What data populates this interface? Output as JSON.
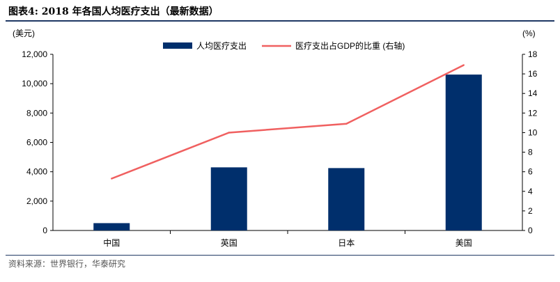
{
  "header": {
    "title": "图表4:   2018 年各国人均医疗支出（最新数据）"
  },
  "footer": {
    "source": "资料来源：世界银行，华泰研究"
  },
  "chart_data": {
    "type": "bar",
    "categories": [
      "中国",
      "英国",
      "日本",
      "美国"
    ],
    "series": [
      {
        "name": "人均医疗支出",
        "type": "bar",
        "axis": "left",
        "color": "#002f6c",
        "values": [
          500,
          4300,
          4250,
          10620
        ]
      },
      {
        "name": "医疗支出占GDP的比重 (右轴)",
        "type": "line",
        "axis": "right",
        "color": "#f06060",
        "values": [
          5.3,
          10.0,
          10.9,
          16.9
        ]
      }
    ],
    "ylabel_left": "(美元)",
    "ylabel_right": "(%)",
    "ylim_left": [
      0,
      12000
    ],
    "ylim_right": [
      0,
      18
    ],
    "yticks_left": [
      "0",
      "2,000",
      "4,000",
      "6,000",
      "8,000",
      "10,000",
      "12,000"
    ],
    "yticks_right": [
      "0",
      "2",
      "4",
      "6",
      "8",
      "10",
      "12",
      "14",
      "16",
      "18"
    ],
    "legend_position": "top-center",
    "grid": false
  }
}
